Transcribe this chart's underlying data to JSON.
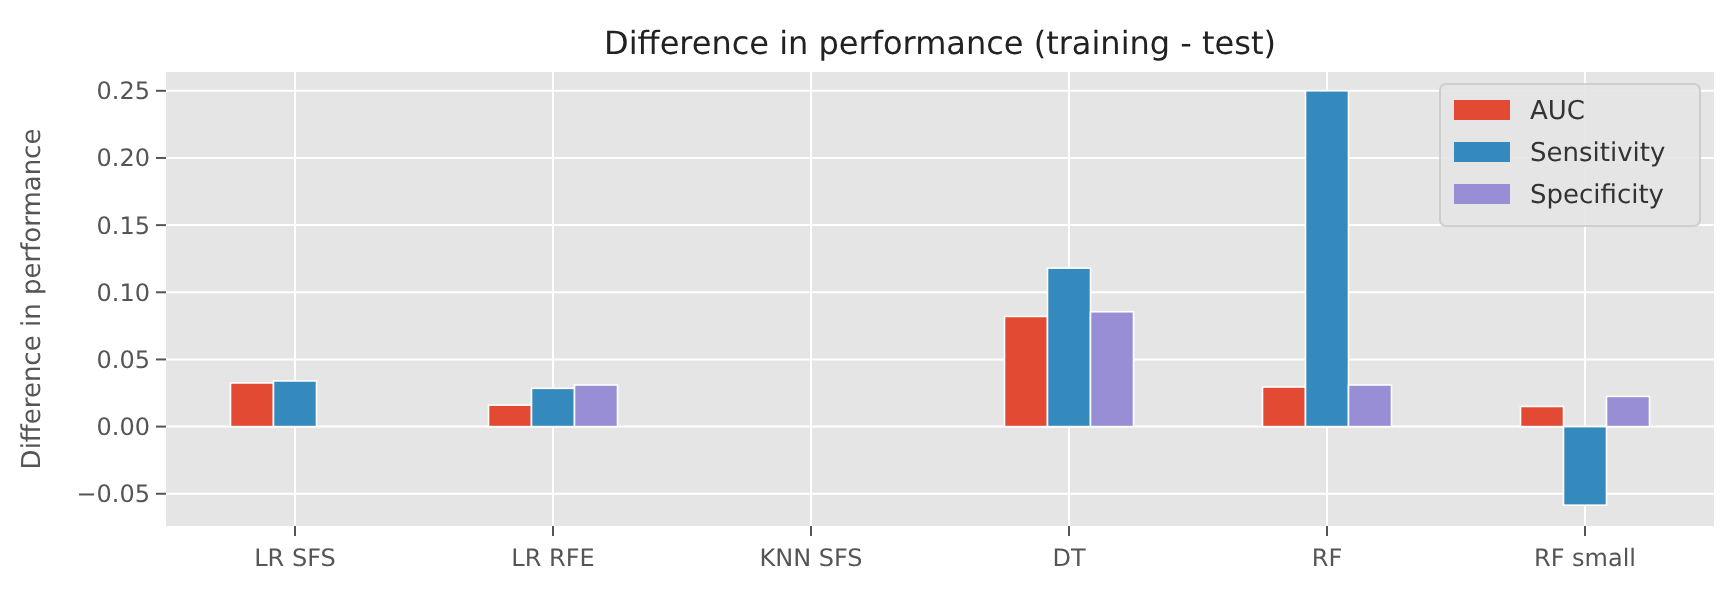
{
  "chart_data": {
    "type": "bar",
    "title": "Difference in performance (training - test)",
    "ylabel": "Difference in performance",
    "categories": [
      "LR SFS",
      "LR RFE",
      "KNN SFS",
      "DT",
      "RF",
      "RF small"
    ],
    "series": [
      {
        "name": "AUC",
        "color": "#e24a33",
        "values": [
          0.0325,
          0.016,
          0,
          0.082,
          0.0295,
          0.015
        ]
      },
      {
        "name": "Sensitivity",
        "color": "#348abd",
        "values": [
          0.034,
          0.0285,
          0,
          0.118,
          0.25,
          -0.0585
        ]
      },
      {
        "name": "Specificity",
        "color": "#988ed5",
        "values": [
          0,
          0.031,
          0,
          0.0855,
          0.031,
          0.0225
        ]
      }
    ],
    "ylim": [
      -0.074,
      0.264
    ],
    "yticks": [
      {
        "value": -0.05,
        "label": "−0.05"
      },
      {
        "value": 0,
        "label": "0.00"
      },
      {
        "value": 0.05,
        "label": "0.05"
      },
      {
        "value": 0.1,
        "label": "0.10"
      },
      {
        "value": 0.15,
        "label": "0.15"
      },
      {
        "value": 0.2,
        "label": "0.20"
      },
      {
        "value": 0.25,
        "label": "0.25"
      }
    ],
    "grid": true,
    "legend": "top right"
  }
}
